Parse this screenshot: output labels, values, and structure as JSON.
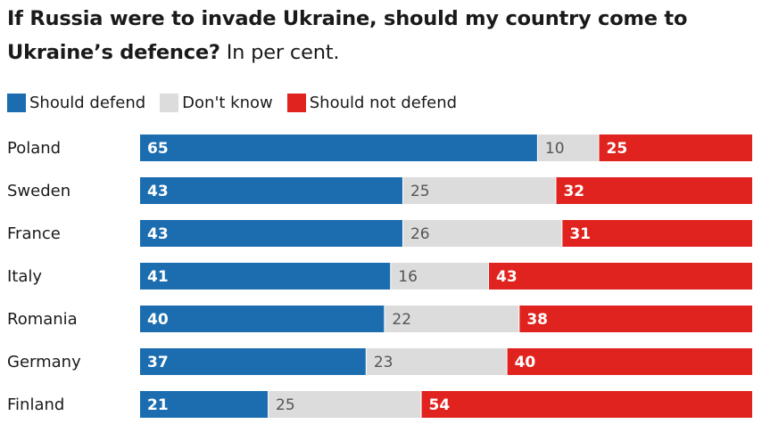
{
  "title": {
    "bold": "If Russia were to invade Ukraine, should my country come to Ukraine’s defence?",
    "light": "In per cent."
  },
  "legend": [
    {
      "label": "Should defend",
      "color": "#1b6db0"
    },
    {
      "label": "Don't know",
      "color": "#dcdcdc"
    },
    {
      "label": "Should not defend",
      "color": "#e0231f"
    }
  ],
  "chart_data": {
    "type": "bar",
    "stacked": true,
    "orientation": "horizontal",
    "categories": [
      "Poland",
      "Sweden",
      "France",
      "Italy",
      "Romania",
      "Germany",
      "Finland"
    ],
    "series": [
      {
        "name": "Should defend",
        "color": "#1b6db0",
        "values": [
          65,
          43,
          43,
          41,
          40,
          37,
          21
        ]
      },
      {
        "name": "Don't know",
        "color": "#dcdcdc",
        "values": [
          10,
          25,
          26,
          16,
          22,
          23,
          25
        ]
      },
      {
        "name": "Should not defend",
        "color": "#e0231f",
        "values": [
          25,
          32,
          31,
          43,
          38,
          40,
          54
        ]
      }
    ],
    "xlim": [
      0,
      100
    ]
  }
}
